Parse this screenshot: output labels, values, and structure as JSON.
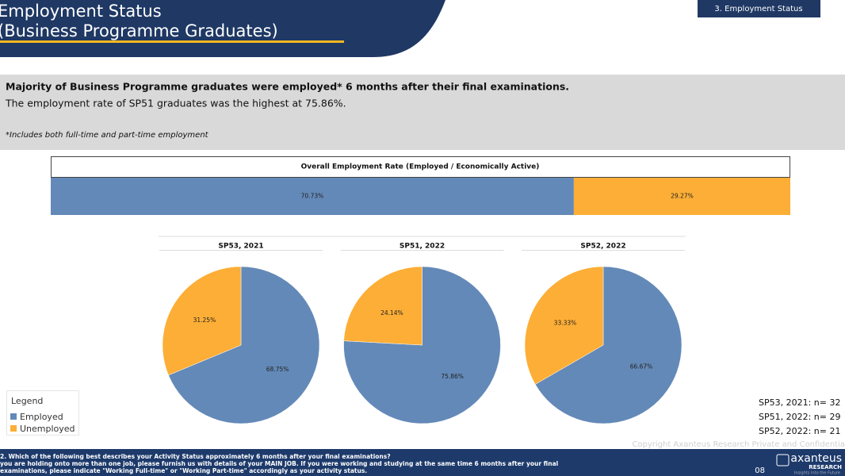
{
  "header": {
    "title_line1": "Employment Status",
    "title_line2": "(Business Programme Graduates)",
    "section_tag": "3. Employment Status"
  },
  "summary": {
    "headline": "Majority of Business Programme graduates were employed* 6 months after their final examinations.",
    "detail": "The employment rate of SP51 graduates was the highest at 75.86%.",
    "footnote": "*Includes both full-time and part-time employment"
  },
  "chart_data": [
    {
      "type": "stacked_bar_h",
      "title": "Overall Employment Rate (Employed / Economically Active)",
      "series": [
        {
          "name": "Employed",
          "color": "#6389b8",
          "values": [
            70.73
          ],
          "value_labels": [
            "70.73%"
          ]
        },
        {
          "name": "Unemployed",
          "color": "#fdae36",
          "values": [
            29.27
          ],
          "value_labels": [
            "29.27%"
          ]
        }
      ]
    },
    {
      "type": "pie",
      "title": "SP53, 2021",
      "categories": [
        "Employed",
        "Unemployed"
      ],
      "values": [
        68.75,
        31.25
      ],
      "value_labels": [
        "68.75%",
        "31.25%"
      ],
      "colors": [
        "#6389b8",
        "#fdae36"
      ]
    },
    {
      "type": "pie",
      "title": "SP51, 2022",
      "categories": [
        "Employed",
        "Unemployed"
      ],
      "values": [
        75.86,
        24.14
      ],
      "value_labels": [
        "75.86%",
        "24.14%"
      ],
      "colors": [
        "#6389b8",
        "#fdae36"
      ]
    },
    {
      "type": "pie",
      "title": "SP52, 2022",
      "categories": [
        "Employed",
        "Unemployed"
      ],
      "values": [
        66.67,
        33.33
      ],
      "value_labels": [
        "66.67%",
        "33.33%"
      ],
      "colors": [
        "#6389b8",
        "#fdae36"
      ]
    }
  ],
  "legend_title": "Legend",
  "sample_sizes": [
    "SP53, 2021: n= 32",
    "SP51, 2022: n= 29",
    "SP52, 2022: n= 21"
  ],
  "footer": {
    "question_lines": [
      "2. Which of the following best describes your Activity Status approximately 6 months after your final examinations?",
      "you are holding onto more than one job, please furnish us with details of your MAIN JOB. If you were working and studying at the same time 6 months after your final",
      "examinations, please indicate \"Working Full-time\" or \"Working Part-time\" accordingly as your activity status."
    ],
    "copyright": "Copyright Axanteus Research Private and Confidentia",
    "page": "08",
    "brand": "axanteus",
    "brand_sub": "RESEARCH",
    "tagline": "Insights Into the Future"
  }
}
